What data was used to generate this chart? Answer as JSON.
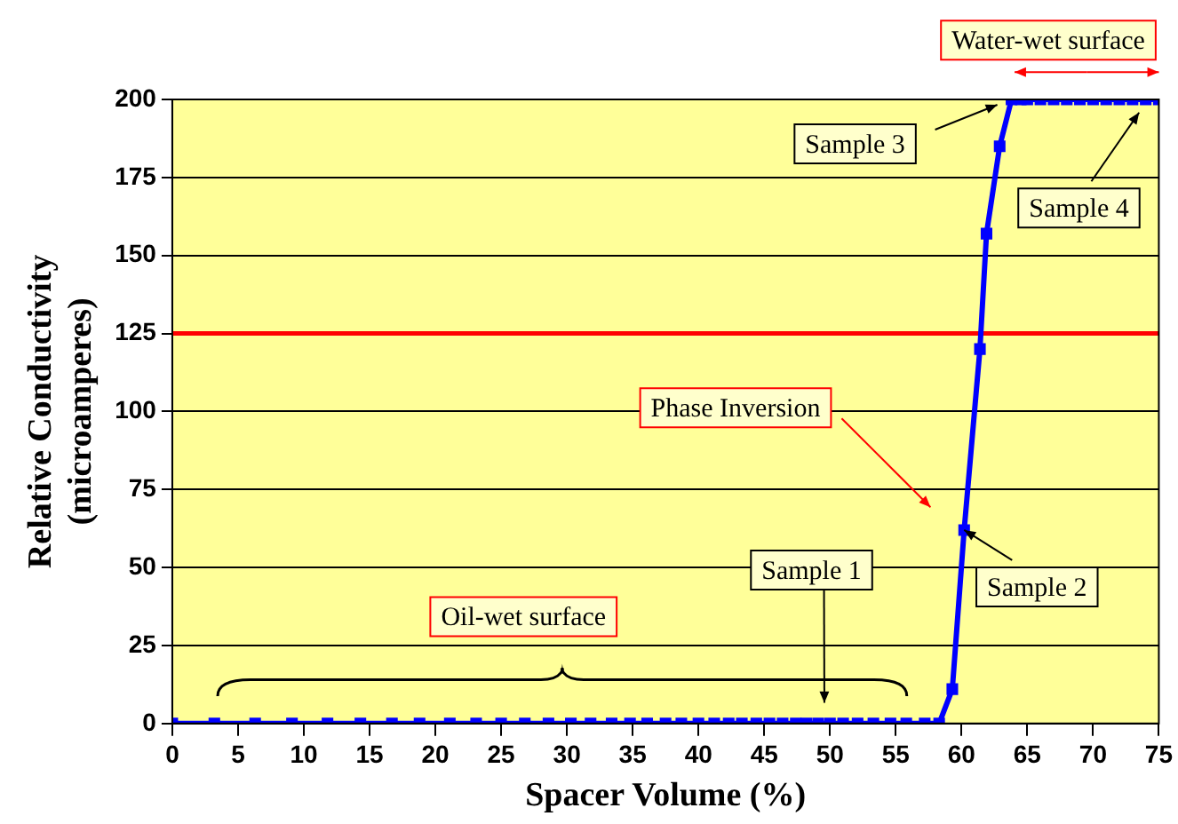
{
  "chart_data": {
    "type": "line",
    "xlabel": "Spacer Volume (%)",
    "ylabel": "Relative Conductivity (microamperes)",
    "x": [
      0,
      3.2,
      6.3,
      9.1,
      11.8,
      14.3,
      16.7,
      18.8,
      21.1,
      23.1,
      25.0,
      26.8,
      28.6,
      30.3,
      31.8,
      33.4,
      34.8,
      36.1,
      37.5,
      38.7,
      40.0,
      41.2,
      42.3,
      43.3,
      44.4,
      45.4,
      46.4,
      47.4,
      48.2,
      49.1,
      50.0,
      51.0,
      52.1,
      53.3,
      54.6,
      55.8,
      57.2,
      58.3,
      59.3,
      60.2,
      61.4,
      61.9,
      62.9,
      63.8,
      64.5,
      65,
      66,
      67,
      68,
      69,
      70,
      71,
      72,
      73,
      74,
      75
    ],
    "series": [
      {
        "color": "#0000ff",
        "values": [
          0,
          0,
          0,
          0,
          0,
          0,
          0,
          0,
          0,
          0,
          0,
          0,
          0,
          0,
          0,
          0,
          0,
          0,
          0,
          0,
          0,
          0,
          0,
          0,
          0,
          0,
          0,
          0,
          0,
          0,
          0,
          0,
          0,
          0,
          0,
          0,
          0,
          0,
          11,
          62,
          120,
          157,
          185,
          200,
          200,
          200,
          200,
          200,
          200,
          200,
          200,
          200,
          200,
          200,
          200,
          200
        ]
      }
    ],
    "xlim": [
      0,
      75
    ],
    "xticks": [
      0,
      5,
      10,
      15,
      20,
      25,
      30,
      35,
      40,
      45,
      50,
      55,
      60,
      65,
      70,
      75
    ],
    "ylim": [
      0,
      200
    ],
    "yticks": [
      0,
      25,
      50,
      75,
      100,
      125,
      150,
      175,
      200
    ],
    "grid": "y",
    "marker": "square",
    "line_style": "solid",
    "ref_lines": [
      {
        "axis": "y",
        "value": 125,
        "color": "#ff0000"
      }
    ],
    "annotations": [
      "Water-wet surface",
      {
        "text": "Sample 3",
        "x": 63.8,
        "y": 200
      },
      "Sample 4",
      "Phase Inversion",
      {
        "text": "Sample 2",
        "x": 60.2,
        "y": 62
      },
      "Sample 1",
      "Oil-wet surface"
    ]
  }
}
